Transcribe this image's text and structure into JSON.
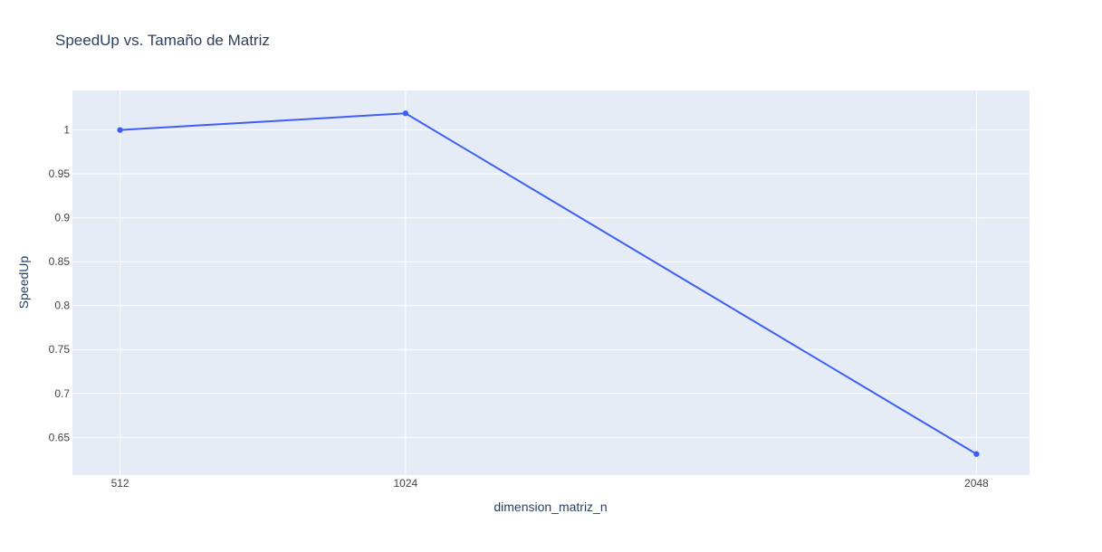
{
  "chart_data": {
    "type": "line",
    "title": "SpeedUp vs. Tamaño de Matriz",
    "xlabel": "dimension_matriz_n",
    "ylabel": "SpeedUp",
    "x_ticks": [
      "512",
      "1024",
      "2048"
    ],
    "y_ticks": [
      "0.65",
      "0.7",
      "0.75",
      "0.8",
      "0.85",
      "0.9",
      "0.95",
      "1"
    ],
    "ylim": [
      0.607,
      1.045
    ],
    "grid": true,
    "series": [
      {
        "x": [
          512,
          1024,
          2048
        ],
        "y": [
          1.0,
          1.019,
          0.631
        ],
        "color": "#3d5ff5",
        "mode": "lines+markers"
      }
    ],
    "plot_background": "#e5ecf6",
    "grid_color": "#ffffff",
    "text_color": "#2a3f5f",
    "tick_color": "#444444"
  }
}
